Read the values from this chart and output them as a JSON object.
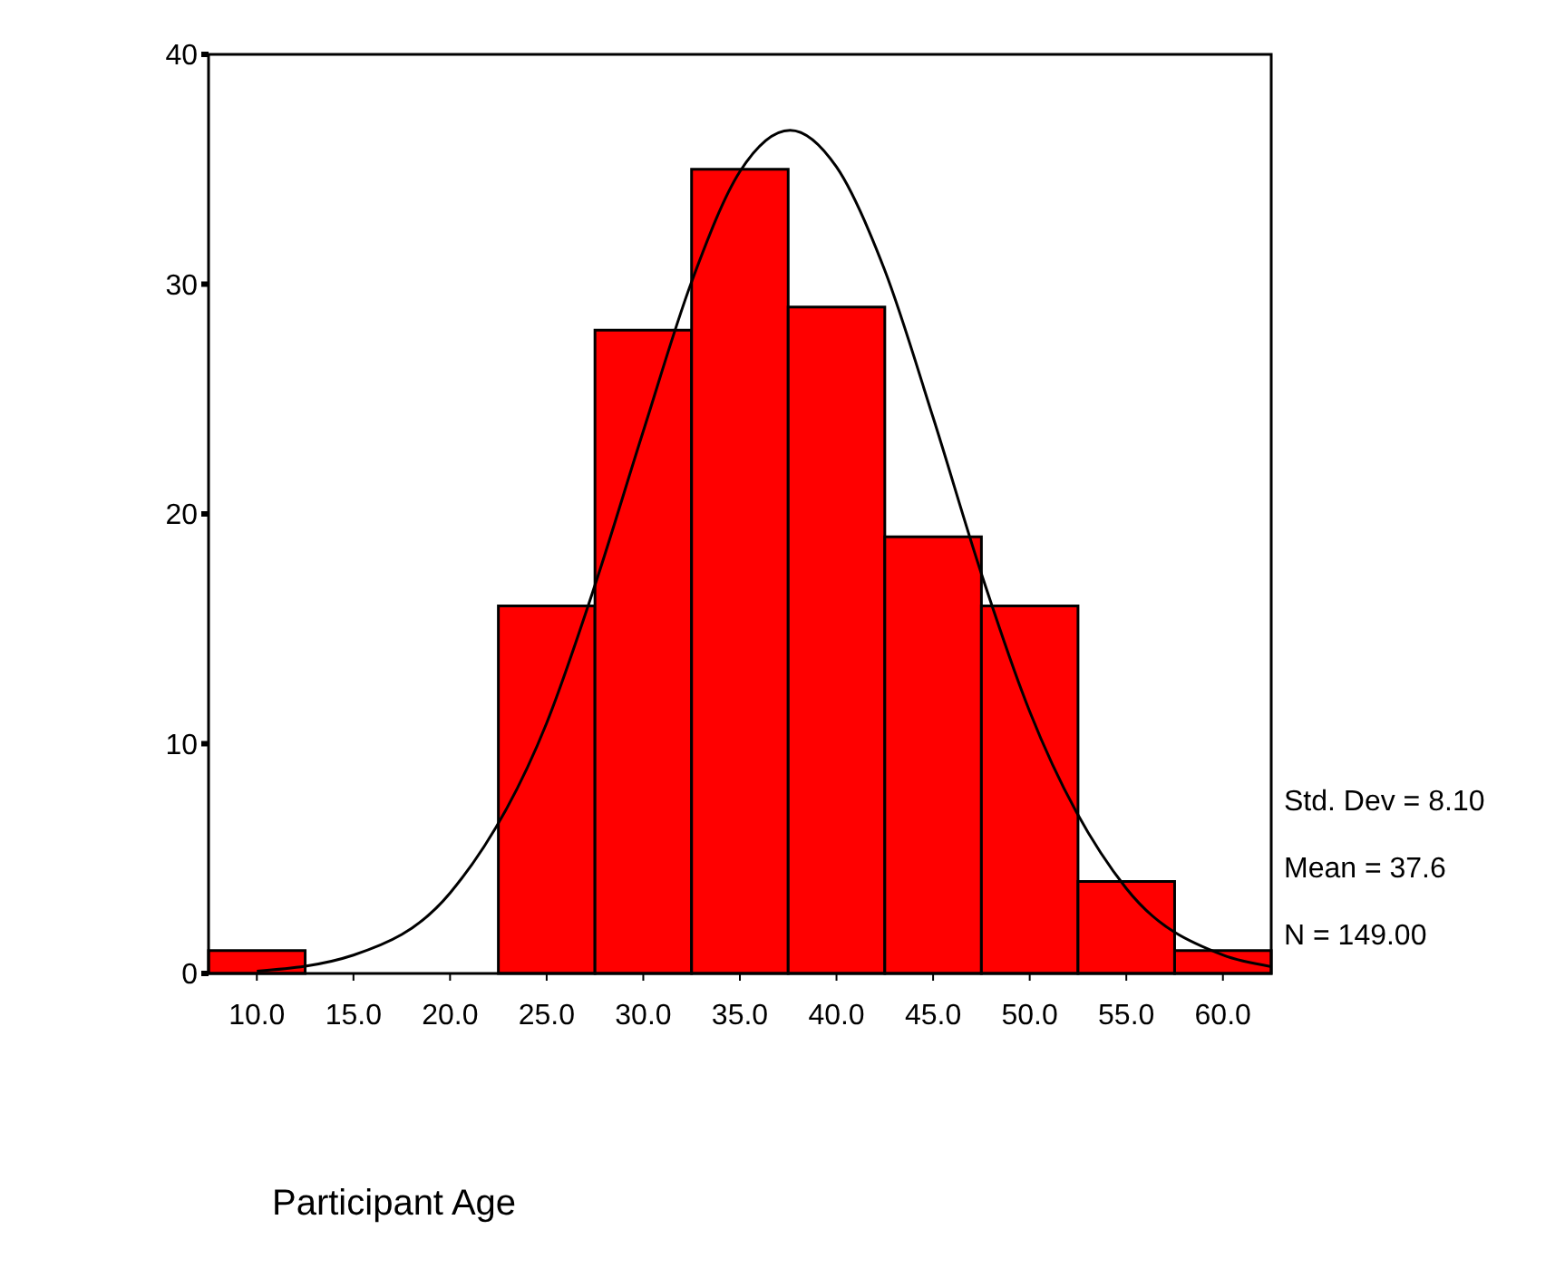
{
  "chart_data": {
    "type": "histogram",
    "xlabel": "Participant Age",
    "bins": [
      7.5,
      12.5,
      17.5,
      22.5,
      27.5,
      32.5,
      37.5,
      42.5,
      47.5,
      52.5,
      57.5,
      62.5
    ],
    "values": [
      1,
      0,
      0,
      16,
      28,
      35,
      29,
      19,
      16,
      4,
      1
    ],
    "color": "#ff0000",
    "series": [
      {
        "type": "line",
        "color": "#000000",
        "x": [
          10,
          15,
          20,
          25,
          27.5,
          30,
          32.5,
          35,
          37.6,
          40,
          42.5,
          45,
          47.5,
          50,
          55,
          60,
          62.5
        ],
        "values": [
          0.1,
          0.8,
          3.5,
          10.9,
          16.9,
          23.6,
          30.1,
          34.9,
          36.7,
          35.1,
          30.6,
          24.2,
          17.4,
          11.4,
          3.7,
          0.8,
          0.3
        ]
      }
    ],
    "xlim": [
      7.5,
      62.5
    ],
    "xticks": [
      {
        "value": 10,
        "label": "10.0"
      },
      {
        "value": 15,
        "label": "15.0"
      },
      {
        "value": 20,
        "label": "20.0"
      },
      {
        "value": 25,
        "label": "25.0"
      },
      {
        "value": 30,
        "label": "30.0"
      },
      {
        "value": 35,
        "label": "35.0"
      },
      {
        "value": 40,
        "label": "40.0"
      },
      {
        "value": 45,
        "label": "45.0"
      },
      {
        "value": 50,
        "label": "50.0"
      },
      {
        "value": 55,
        "label": "55.0"
      },
      {
        "value": 60,
        "label": "60.0"
      }
    ],
    "ylim": [
      0,
      40
    ],
    "yticks": [
      0,
      10,
      20,
      30,
      40
    ],
    "grid": false,
    "legend": false,
    "marker": "none",
    "line_style": "solid",
    "annotations": [
      "Std. Dev = 8.10",
      "Mean = 37.6",
      "N = 149.00"
    ]
  }
}
